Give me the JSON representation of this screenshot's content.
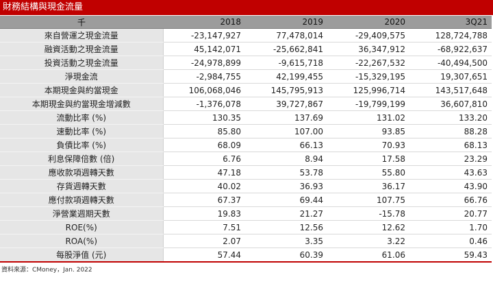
{
  "title": "財務結構與現金流量",
  "header": {
    "unit": "千",
    "columns": [
      "2018",
      "2019",
      "2020",
      "3Q21"
    ]
  },
  "rows": [
    {
      "label": "來自營運之現金流量",
      "values": [
        "-23,147,927",
        "77,478,014",
        "-29,409,575",
        "128,724,788"
      ]
    },
    {
      "label": "融資活動之現金流量",
      "values": [
        "45,142,071",
        "-25,662,841",
        "36,347,912",
        "-68,922,637"
      ]
    },
    {
      "label": "投資活動之現金流量",
      "values": [
        "-24,978,899",
        "-9,615,718",
        "-22,267,532",
        "-40,494,500"
      ]
    },
    {
      "label": "淨現金流",
      "values": [
        "-2,984,755",
        "42,199,455",
        "-15,329,195",
        "19,307,651"
      ]
    },
    {
      "label": "本期現金與約當現金",
      "values": [
        "106,068,046",
        "145,795,913",
        "125,996,714",
        "143,517,648"
      ]
    },
    {
      "label": "本期現金與約當現金增減數",
      "values": [
        "-1,376,078",
        "39,727,867",
        "-19,799,199",
        "36,607,810"
      ]
    },
    {
      "label": "流動比率 (%)",
      "values": [
        "130.35",
        "137.69",
        "131.02",
        "133.20"
      ]
    },
    {
      "label": "速動比率 (%)",
      "values": [
        "85.80",
        "107.00",
        "93.85",
        "88.28"
      ]
    },
    {
      "label": "負債比率 (%)",
      "values": [
        "68.09",
        "66.13",
        "70.93",
        "68.13"
      ]
    },
    {
      "label": "利息保障倍數 (倍)",
      "values": [
        "6.76",
        "8.94",
        "17.58",
        "23.29"
      ]
    },
    {
      "label": "應收款項週轉天數",
      "values": [
        "47.18",
        "53.78",
        "55.80",
        "43.63"
      ]
    },
    {
      "label": "存貨週轉天數",
      "values": [
        "40.02",
        "36.93",
        "36.17",
        "43.90"
      ]
    },
    {
      "label": "應付款項週轉天數",
      "values": [
        "67.37",
        "69.44",
        "107.75",
        "66.76"
      ]
    },
    {
      "label": "淨營業週期天數",
      "values": [
        "19.83",
        "21.27",
        "-15.78",
        "20.77"
      ]
    },
    {
      "label": "ROE(%)",
      "values": [
        "7.51",
        "12.56",
        "12.62",
        "1.70"
      ]
    },
    {
      "label": "ROA(%)",
      "values": [
        "2.07",
        "3.35",
        "3.22",
        "0.46"
      ]
    },
    {
      "label": "每股淨值 (元)",
      "values": [
        "57.44",
        "60.39",
        "61.06",
        "59.43"
      ]
    }
  ],
  "source": "資料來源：CMoney，Jan. 2022",
  "colors": {
    "title_bg": "#c00000",
    "header_bg": "#9c9c9c",
    "label_bg": "#e6e6e6"
  }
}
